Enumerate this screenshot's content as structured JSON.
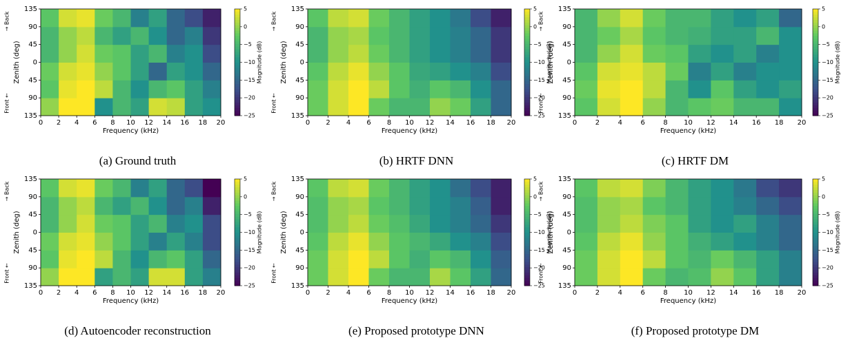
{
  "chart_data": [
    {
      "type": "heatmap",
      "caption": "(a) Ground truth",
      "xlabel": "Frequency (kHz)",
      "ylabel": "Zenith (deg)",
      "front_label": "Front ←",
      "back_label": "→ Back",
      "colormap": "viridis",
      "xlim": [
        0,
        20
      ],
      "xticks": [
        0,
        2,
        4,
        6,
        8,
        10,
        12,
        14,
        16,
        18,
        20
      ],
      "ylim": [
        -135,
        135
      ],
      "yticks": [
        {
          "value": -135,
          "label": "135"
        },
        {
          "value": -90,
          "label": "90"
        },
        {
          "value": -45,
          "label": "45"
        },
        0,
        45,
        90,
        135
      ],
      "colorbar": {
        "label": "Magnitude (dB)",
        "lim": [
          -25,
          5
        ],
        "ticks": [
          5,
          0,
          {
            "value": -5,
            "label": "−5"
          },
          {
            "value": -10,
            "label": "−10"
          },
          {
            "value": -15,
            "label": "−15"
          },
          {
            "value": -20,
            "label": "−20"
          },
          {
            "value": -25,
            "label": "−25"
          }
        ]
      },
      "z": [
        [
          0,
          5,
          5,
          -10,
          -5,
          -8,
          3,
          2,
          -8,
          -10
        ],
        [
          -3,
          4,
          5,
          2,
          -5,
          -10,
          -5,
          -3,
          -8,
          -12
        ],
        [
          -2,
          3,
          4,
          0,
          -3,
          -8,
          -15,
          -8,
          -10,
          -15
        ],
        [
          -5,
          0,
          3,
          -2,
          -3,
          -8,
          -5,
          -12,
          -10,
          -18
        ],
        [
          -5,
          0,
          2,
          -5,
          -8,
          -5,
          -10,
          -15,
          -12,
          -20
        ],
        [
          -3,
          3,
          4,
          -2,
          -5,
          -12,
          -8,
          -15,
          -18,
          -22
        ]
      ]
    },
    {
      "type": "heatmap",
      "caption": "(b) HRTF DNN",
      "xlabel": "Frequency (kHz)",
      "ylabel": "Zenith (deg)",
      "front_label": "Front ←",
      "back_label": "→ Back",
      "colormap": "viridis",
      "xlim": [
        0,
        20
      ],
      "xticks": [
        0,
        2,
        4,
        6,
        8,
        10,
        12,
        14,
        16,
        18,
        20
      ],
      "ylim": [
        -135,
        135
      ],
      "yticks": [
        {
          "value": -135,
          "label": "135"
        },
        {
          "value": -90,
          "label": "90"
        },
        {
          "value": -45,
          "label": "45"
        },
        0,
        45,
        90,
        135
      ],
      "colorbar": {
        "label": "Magnitude (dB)",
        "lim": [
          -25,
          5
        ],
        "ticks": [
          5,
          0,
          {
            "value": -5,
            "label": "−5"
          },
          {
            "value": -10,
            "label": "−10"
          },
          {
            "value": -15,
            "label": "−15"
          },
          {
            "value": -20,
            "label": "−20"
          },
          {
            "value": -25,
            "label": "−25"
          }
        ]
      },
      "z": [
        [
          -2,
          3,
          5,
          -2,
          -5,
          -5,
          0,
          -2,
          -8,
          -15
        ],
        [
          -2,
          3,
          5,
          2,
          -3,
          -6,
          -3,
          -5,
          -10,
          -15
        ],
        [
          -3,
          2,
          4,
          0,
          -3,
          -7,
          -8,
          -10,
          -12,
          -18
        ],
        [
          -5,
          0,
          2,
          -2,
          -5,
          -8,
          -10,
          -12,
          -15,
          -20
        ],
        [
          -5,
          0,
          1,
          -3,
          -5,
          -8,
          -10,
          -12,
          -15,
          -20
        ],
        [
          -3,
          2,
          3,
          -2,
          -5,
          -8,
          -10,
          -13,
          -18,
          -22
        ]
      ]
    },
    {
      "type": "heatmap",
      "caption": "(c) HRTF DM",
      "xlabel": "Frequency (kHz)",
      "ylabel": "Zenith (deg)",
      "front_label": "Front ←",
      "back_label": "→ Back",
      "colormap": "viridis",
      "xlim": [
        0,
        20
      ],
      "xticks": [
        0,
        2,
        4,
        6,
        8,
        10,
        12,
        14,
        16,
        18,
        20
      ],
      "ylim": [
        -135,
        135
      ],
      "yticks": [
        {
          "value": -135,
          "label": "135"
        },
        {
          "value": -90,
          "label": "90"
        },
        {
          "value": -45,
          "label": "45"
        },
        0,
        45,
        90,
        135
      ],
      "colorbar": {
        "label": "Magnitude (dB)",
        "lim": [
          -25,
          5
        ],
        "ticks": [
          5,
          0,
          {
            "value": -5,
            "label": "−5"
          },
          {
            "value": -10,
            "label": "−10"
          },
          {
            "value": -15,
            "label": "−15"
          },
          {
            "value": -20,
            "label": "−20"
          },
          {
            "value": -25,
            "label": "−25"
          }
        ]
      },
      "z": [
        [
          -3,
          3,
          5,
          0,
          -5,
          -3,
          -2,
          -5,
          -5,
          -10
        ],
        [
          -2,
          4,
          5,
          2,
          -5,
          -10,
          -3,
          -8,
          -10,
          -8
        ],
        [
          -3,
          3,
          4,
          2,
          -2,
          -12,
          -8,
          -12,
          -10,
          -10
        ],
        [
          -5,
          0,
          3,
          -2,
          -3,
          -8,
          -10,
          -8,
          -12,
          -10
        ],
        [
          -5,
          -2,
          1,
          -3,
          -5,
          -6,
          -8,
          -8,
          -5,
          -10
        ],
        [
          -5,
          0,
          3,
          -2,
          -5,
          -5,
          -8,
          -10,
          -8,
          -15
        ]
      ]
    },
    {
      "type": "heatmap",
      "caption": "(d) Autoencoder reconstruction",
      "xlabel": "Frequency (kHz)",
      "ylabel": "Zenith (deg)",
      "front_label": "Front ←",
      "back_label": "→ Back",
      "colormap": "viridis",
      "xlim": [
        0,
        20
      ],
      "xticks": [
        0,
        2,
        4,
        6,
        8,
        10,
        12,
        14,
        16,
        18,
        20
      ],
      "ylim": [
        -135,
        135
      ],
      "yticks": [
        {
          "value": -135,
          "label": "135"
        },
        {
          "value": -90,
          "label": "90"
        },
        {
          "value": -45,
          "label": "45"
        },
        0,
        45,
        90,
        135
      ],
      "colorbar": {
        "label": "Magnitude (dB)",
        "lim": [
          -25,
          5
        ],
        "ticks": [
          5,
          0,
          {
            "value": -5,
            "label": "−5"
          },
          {
            "value": -10,
            "label": "−10"
          },
          {
            "value": -15,
            "label": "−15"
          },
          {
            "value": -20,
            "label": "−20"
          },
          {
            "value": -25,
            "label": "−25"
          }
        ]
      },
      "z": [
        [
          0,
          5,
          5,
          -8,
          -5,
          -8,
          3,
          3,
          -8,
          -12
        ],
        [
          -3,
          4,
          5,
          2,
          -5,
          -10,
          -5,
          -3,
          -8,
          -15
        ],
        [
          -2,
          3,
          4,
          0,
          -3,
          -8,
          -12,
          -8,
          -12,
          -18
        ],
        [
          -5,
          0,
          3,
          -2,
          -3,
          -8,
          -5,
          -12,
          -10,
          -18
        ],
        [
          -5,
          0,
          2,
          -5,
          -8,
          -5,
          -10,
          -15,
          -12,
          -22
        ],
        [
          -3,
          3,
          4,
          -2,
          -5,
          -12,
          -8,
          -15,
          -18,
          -25
        ]
      ]
    },
    {
      "type": "heatmap",
      "caption": "(e) Proposed prototype DNN",
      "xlabel": "Frequency (kHz)",
      "ylabel": "Zenith (deg)",
      "front_label": "Front ←",
      "back_label": "→ Back",
      "colormap": "viridis",
      "xlim": [
        0,
        20
      ],
      "xticks": [
        0,
        2,
        4,
        6,
        8,
        10,
        12,
        14,
        16,
        18,
        20
      ],
      "ylim": [
        -135,
        135
      ],
      "yticks": [
        {
          "value": -135,
          "label": "135"
        },
        {
          "value": -90,
          "label": "90"
        },
        {
          "value": -45,
          "label": "45"
        },
        0,
        45,
        90,
        135
      ],
      "colorbar": {
        "label": "Magnitude (dB)",
        "lim": [
          -25,
          5
        ],
        "ticks": [
          5,
          0,
          {
            "value": -5,
            "label": "−5"
          },
          {
            "value": -10,
            "label": "−10"
          },
          {
            "value": -15,
            "label": "−15"
          },
          {
            "value": -20,
            "label": "−20"
          },
          {
            "value": -25,
            "label": "−25"
          }
        ]
      },
      "z": [
        [
          -2,
          3,
          5,
          -2,
          -5,
          -5,
          1,
          -3,
          -8,
          -15
        ],
        [
          -2,
          3,
          5,
          2,
          -3,
          -6,
          -3,
          -5,
          -10,
          -16
        ],
        [
          -3,
          2,
          4,
          0,
          -3,
          -5,
          -7,
          -10,
          -12,
          -18
        ],
        [
          -4,
          0,
          2,
          -2,
          -4,
          -7,
          -10,
          -12,
          -15,
          -20
        ],
        [
          -4,
          0,
          1,
          -3,
          -5,
          -8,
          -10,
          -12,
          -16,
          -22
        ],
        [
          -3,
          2,
          3,
          -2,
          -5,
          -8,
          -10,
          -14,
          -18,
          -22
        ]
      ]
    },
    {
      "type": "heatmap",
      "caption": "(f) Proposed prototype DM",
      "xlabel": "Frequency (kHz)",
      "ylabel": "Zenith (deg)",
      "front_label": "Front ←",
      "back_label": "→ Back",
      "colormap": "viridis",
      "xlim": [
        0,
        20
      ],
      "xticks": [
        0,
        2,
        4,
        6,
        8,
        10,
        12,
        14,
        16,
        18,
        20
      ],
      "ylim": [
        -135,
        135
      ],
      "yticks": [
        {
          "value": -135,
          "label": "135"
        },
        {
          "value": -90,
          "label": "90"
        },
        {
          "value": -45,
          "label": "45"
        },
        0,
        45,
        90,
        135
      ],
      "colorbar": {
        "label": "Magnitude (dB)",
        "lim": [
          -25,
          5
        ],
        "ticks": [
          5,
          0,
          {
            "value": -5,
            "label": "−5"
          },
          {
            "value": -10,
            "label": "−10"
          },
          {
            "value": -15,
            "label": "−15"
          },
          {
            "value": -20,
            "label": "−20"
          },
          {
            "value": -25,
            "label": "−25"
          }
        ]
      },
      "z": [
        [
          -2,
          3,
          5,
          -2,
          -5,
          -4,
          0,
          -3,
          -8,
          -12
        ],
        [
          -2,
          3,
          5,
          2,
          -3,
          -5,
          -2,
          -5,
          -8,
          -12
        ],
        [
          -3,
          2,
          4,
          0,
          -3,
          -6,
          -8,
          -10,
          -12,
          -15
        ],
        [
          -4,
          0,
          2,
          -1,
          -3,
          -8,
          -10,
          -8,
          -12,
          -15
        ],
        [
          -4,
          0,
          1,
          -3,
          -5,
          -8,
          -10,
          -12,
          -15,
          -18
        ],
        [
          -3,
          2,
          3,
          -1,
          -5,
          -8,
          -10,
          -13,
          -18,
          -20
        ]
      ]
    }
  ]
}
